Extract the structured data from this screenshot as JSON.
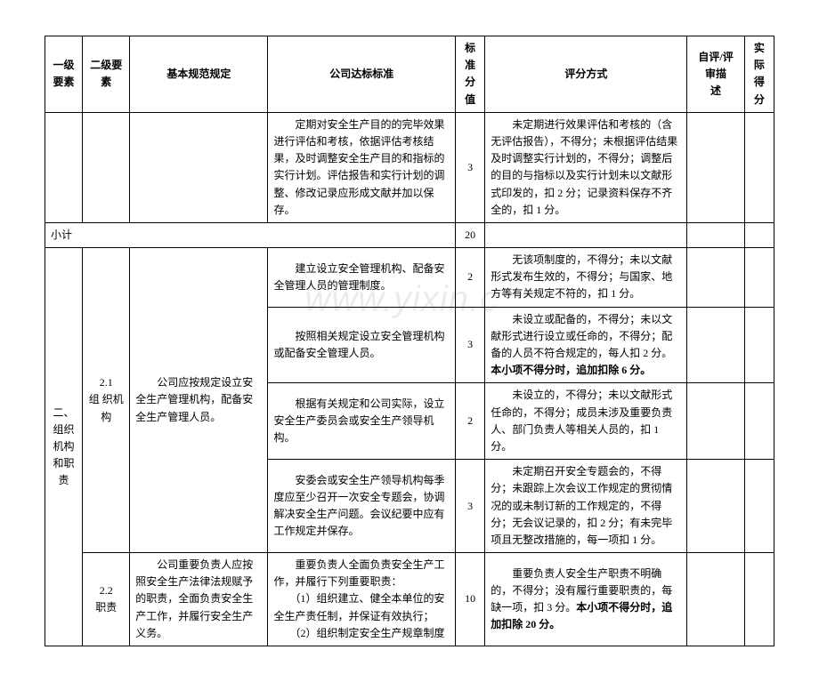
{
  "watermark": "www.yixin.c",
  "header": {
    "col1": "一级要素",
    "col2": "二级要素",
    "col3": "基本规范规定",
    "col4": "公司达标标准",
    "col5": "标准分值",
    "col6": "评分方式",
    "col7": "自评/评审描　　述",
    "col8": "实际得分"
  },
  "row_periodic": {
    "std": "　　定期对安全生产目的的完毕效果进行评估和考核，依据评估考核结果，及时调整安全生产目的和指标的实行计划。评估报告和实行计划的调整、修改记录应形成文献并加以保存。",
    "score": "3",
    "method": "　　未定期进行效果评估和考核的（含无评估报告），不得分；未根据评估结果及时调整实行计划的，不得分；调整后的目的与指标以及实行计划未以文献形式印发的，扣 2 分；记录资料保存不齐全的，扣 1 分。"
  },
  "subtotal": {
    "label": "小计",
    "score": "20"
  },
  "sec2": {
    "level1": "二、组织机构和职责",
    "g21": {
      "label": "2.1\n组 织机构",
      "spec": "　　公司应按规定设立安全生产管理机构，配备安全生产管理人员。",
      "r1": {
        "std": "　　建立设立安全管理机构、配备安全管理人员的管理制度。",
        "score": "2",
        "method": "　　无该项制度的，不得分；未以文献形式发布生效的，不得分；与国家、地方等有关规定不符的，扣 1 分。"
      },
      "r2": {
        "std": "　　按照相关规定设立安全管理机构或配备安全管理人员。",
        "score": "3",
        "method": "　　未设立或配备的，不得分；未以文献形式进行设立或任命的，不得分；配备的人员不符合规定的，每人扣 2 分。本小项不得分时，追加扣除 6 分。"
      },
      "r3": {
        "std": "　　根据有关规定和公司实际，设立安全生产委员会或安全生产领导机构。",
        "score": "2",
        "method": "　　未设立的，不得分；未以文献形式任命的，不得分；成员未涉及重要负责人、部门负责人等相关人员的，扣 1 分。"
      },
      "r4": {
        "std": "　　安委会或安全生产领导机构每季度应至少召开一次安全专题会，协调解决安全生产问题。会议纪要中应有工作规定并保存。",
        "score": "3",
        "method": "　　未定期召开安全专题会的，不得分；未跟踪上次会议工作规定的贯彻情况的或未制订新的工作规定的，不得分；无会议记录的，扣 2 分；有未完毕项且无整改措施的，每一项扣 1 分。"
      }
    },
    "g22": {
      "label": "2.2\n职责",
      "spec": "　　公司重要负责人应按照安全生产法律法规赋予的职责，全面负责安全生产工作，并履行安全生产义务。",
      "r1": {
        "std": "　　重要负责人全面负责安全生产工作，并履行下列重要职责：\n　　（1）组织建立、健全本单位的安全生产责任制，并保证有效执行；\n　　（2）组织制定安全生产规章制度",
        "score": "10",
        "method": "　　重要负责人安全生产职责不明确的，不得分；没有履行重要职责的，每缺一项，扣 3 分。本小项不得分时，追加扣除 20 分。"
      }
    }
  }
}
